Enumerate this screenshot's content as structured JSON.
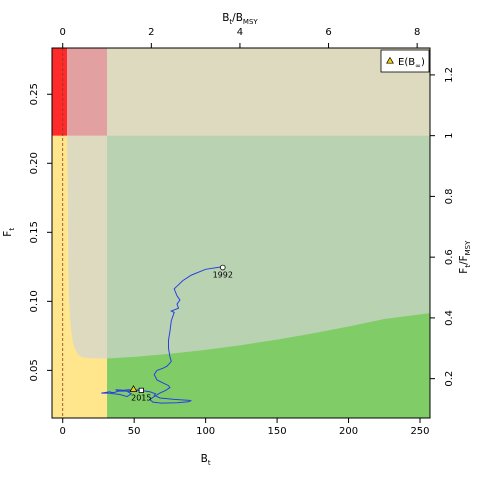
{
  "chart_data": {
    "type": "line",
    "axes": {
      "bottom": {
        "label": "B",
        "label_sub": "t",
        "range": [
          -7.5,
          257
        ],
        "ticks": [
          0,
          50,
          100,
          150,
          200,
          250
        ]
      },
      "left": {
        "label": "F",
        "label_sub": "t",
        "range": [
          0.0155,
          0.2835
        ],
        "ticks": [
          0.05,
          0.1,
          0.15,
          0.2,
          0.25
        ],
        "tick_labels": [
          "0.05",
          "0.10",
          "0.15",
          "0.20",
          "0.25"
        ]
      },
      "top": {
        "label": "B",
        "label_sub": "t",
        "label_suffix": "/B",
        "label_suffix_sub": "MSY",
        "range": [
          -0.242,
          8.29
        ],
        "ticks": [
          0,
          2,
          4,
          6,
          8
        ]
      },
      "right": {
        "label": "F",
        "label_sub": "t",
        "label_suffix": "/F",
        "label_suffix_sub": "MSY",
        "range": [
          0.07045,
          1.2886
        ],
        "ticks": [
          0.2,
          0.4,
          0.6,
          0.8,
          1.0,
          1.2
        ],
        "tick_labels": [
          "0.2",
          "0.4",
          "0.6",
          "0.8",
          "1",
          "1.2"
        ]
      }
    },
    "reference": {
      "b_msy": 31.0,
      "f_msy": 0.22,
      "b_lim_fraction": 0.1,
      "b_inf_line": 0
    },
    "regions": [
      {
        "name": "red",
        "color": "#ff2a2a"
      },
      {
        "name": "pink",
        "color": "#e2a0a0"
      },
      {
        "name": "yellow",
        "color": "#ffe68c"
      },
      {
        "name": "tan",
        "color": "#dedac0"
      },
      {
        "name": "green-grey",
        "color": "#b9d2b2"
      },
      {
        "name": "green",
        "color": "#80cd68"
      }
    ],
    "tan_curve": {
      "x": [
        3.0,
        3.5,
        4.0,
        4.5,
        5.0,
        6.0,
        7.0,
        8.0,
        10.0,
        12.0,
        14.0,
        17.0,
        20.0,
        24.0,
        28.0,
        31.0
      ],
      "y": [
        0.2835,
        0.175,
        0.12,
        0.1,
        0.09,
        0.078,
        0.071,
        0.067,
        0.0625,
        0.0605,
        0.0595,
        0.059,
        0.0588,
        0.0587,
        0.0586,
        0.0586
      ]
    },
    "sustainable_boundary": {
      "x": [
        31,
        50,
        75,
        100,
        125,
        150,
        175,
        200,
        225,
        257
      ],
      "y": [
        0.0586,
        0.0598,
        0.062,
        0.0648,
        0.0683,
        0.0723,
        0.0768,
        0.0818,
        0.0872,
        0.0915
      ]
    },
    "series": [
      {
        "line_color": "#2a3fe0",
        "x": [
          112,
          110,
          100,
          90,
          84,
          80,
          78,
          80,
          82,
          80,
          81,
          76,
          78,
          76,
          75,
          74,
          74,
          75,
          76,
          73,
          70,
          66,
          64,
          66,
          70,
          74,
          75,
          72,
          68,
          64,
          61,
          63,
          69,
          80,
          88,
          90,
          78,
          68,
          64,
          65,
          61,
          54,
          46,
          39,
          36,
          34,
          33,
          27,
          32,
          40,
          45,
          48,
          44,
          37,
          39,
          46,
          50,
          53,
          55
        ],
        "y": [
          0.1245,
          0.1248,
          0.1232,
          0.119,
          0.115,
          0.111,
          0.109,
          0.104,
          0.101,
          0.098,
          0.095,
          0.093,
          0.092,
          0.086,
          0.078,
          0.072,
          0.066,
          0.06,
          0.0565,
          0.053,
          0.0515,
          0.05,
          0.047,
          0.043,
          0.041,
          0.039,
          0.0375,
          0.0355,
          0.0335,
          0.031,
          0.029,
          0.027,
          0.0263,
          0.0265,
          0.0272,
          0.0282,
          0.029,
          0.03,
          0.032,
          0.033,
          0.0345,
          0.0355,
          0.036,
          0.035,
          0.034,
          0.034,
          0.0345,
          0.0335,
          0.0335,
          0.0325,
          0.031,
          0.033,
          0.0355,
          0.036,
          0.035,
          0.035,
          0.0355,
          0.036,
          0.0355
        ]
      }
    ],
    "points": [
      {
        "label": "1992",
        "x": 112,
        "y": 0.1245,
        "marker": "circle"
      },
      {
        "label": "2015",
        "x": 55,
        "y": 0.0355,
        "marker": "square"
      }
    ],
    "expected_point": {
      "x": 49.5,
      "y": 0.0363,
      "marker": "triangle",
      "color": "#f2d100"
    },
    "legend": {
      "placement": "top-right",
      "label_prefix": "E(B",
      "label_sub": "∞",
      "label_suffix": ")"
    },
    "grid": false
  }
}
